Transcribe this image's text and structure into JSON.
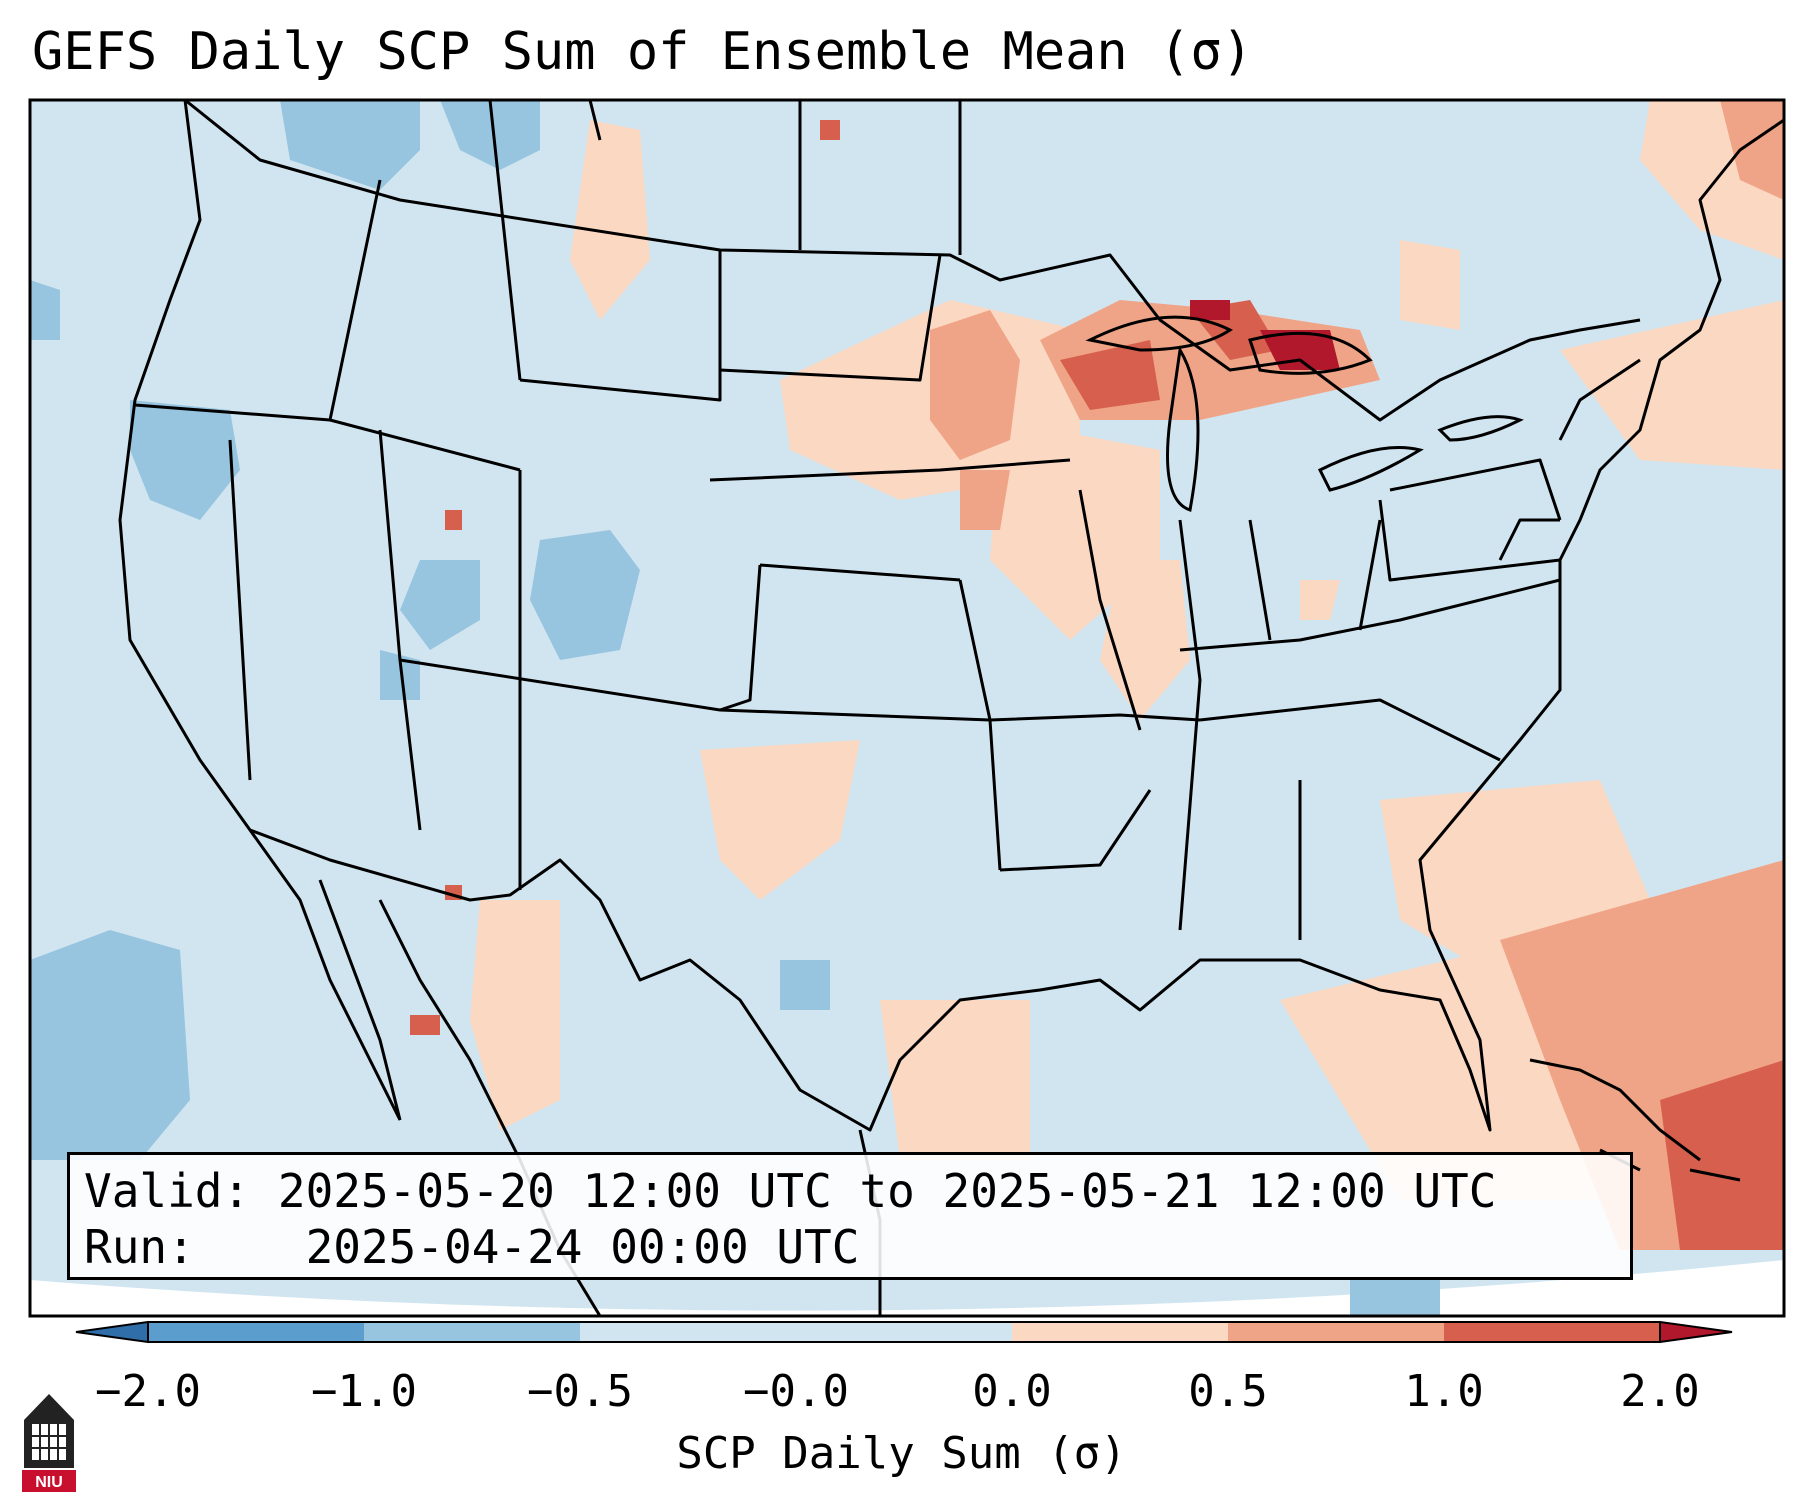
{
  "title": "GEFS Daily SCP Sum of Ensemble Mean (σ)",
  "info": {
    "valid_label": "Valid:",
    "valid_value": "2025-05-20 12:00 UTC to 2025-05-21 12:00 UTC",
    "run_label": "Run:",
    "run_value": "2025-04-24 00:00 UTC"
  },
  "colorbar": {
    "label": "SCP Daily Sum (σ)",
    "ticks": [
      "−2.0",
      "−1.0",
      "−0.5",
      "−0.0",
      "0.0",
      "0.5",
      "1.0",
      "2.0"
    ],
    "colors": [
      "#2f6ea8",
      "#5b9dcc",
      "#97c4df",
      "#d1e5f0",
      "#fbd8c2",
      "#f0a487",
      "#d6604d",
      "#b2182b"
    ],
    "extend": "both"
  },
  "map": {
    "background_color": "#d1e5f0",
    "region": "Contiguous United States",
    "logo_text": "NIU"
  }
}
